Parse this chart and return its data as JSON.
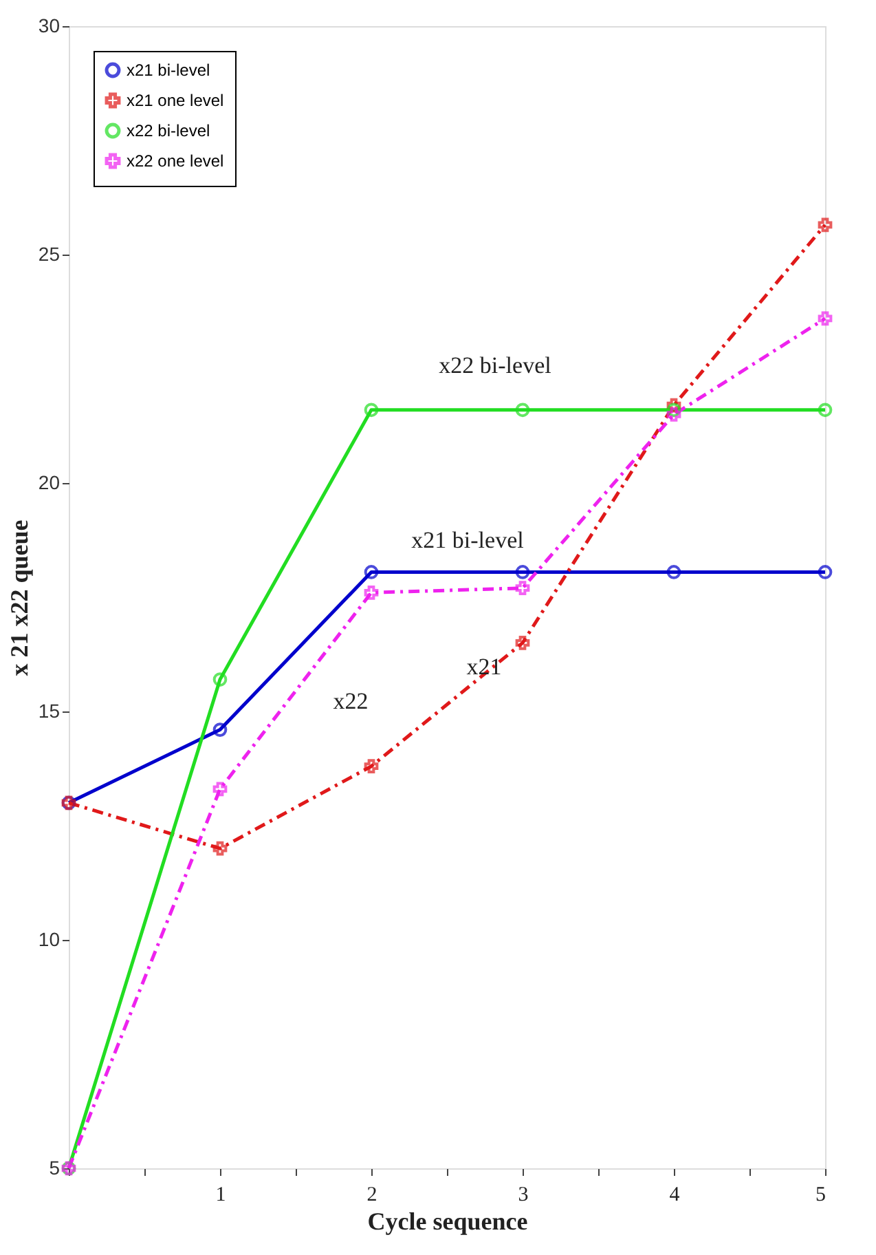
{
  "chart_data": {
    "type": "line",
    "xlabel": "Cycle sequence",
    "ylabel": "x 21  x22 queue",
    "x": [
      0,
      1,
      2,
      3,
      4,
      5
    ],
    "xlim": [
      0,
      5
    ],
    "ylim": [
      5,
      30
    ],
    "xticks": [
      {
        "value": 0,
        "label": null
      },
      {
        "value": 0.5,
        "label": null
      },
      1,
      {
        "value": 1.5,
        "label": null
      },
      2,
      {
        "value": 2.5,
        "label": null
      },
      3,
      {
        "value": 3.5,
        "label": null
      },
      4,
      {
        "value": 4.5,
        "label": null
      },
      5
    ],
    "yticks": [
      5,
      10,
      15,
      20,
      25,
      30
    ],
    "grid": false,
    "legend": "top left",
    "series": [
      {
        "name": "x21  bi-level",
        "color": "#0000cc",
        "marker": "circle",
        "line_style": "solid",
        "values": [
          13,
          14.6,
          18.05,
          18.05,
          18.05,
          18.05
        ]
      },
      {
        "name": "x21 one level",
        "color": "#e0191a",
        "marker": "cross",
        "line_style": "dashed",
        "values": [
          13,
          12,
          13.8,
          16.5,
          21.7,
          25.65
        ]
      },
      {
        "name": "x22 bi-level",
        "color": "#22dd22",
        "marker": "circle",
        "line_style": "solid",
        "values": [
          5,
          15.7,
          21.6,
          21.6,
          21.6,
          21.6
        ]
      },
      {
        "name": "x22 one level",
        "color": "#ee22ee",
        "marker": "cross",
        "line_style": "dashed",
        "values": [
          5,
          13.3,
          17.6,
          17.7,
          21.5,
          23.6
        ]
      }
    ],
    "annotations": [
      "x22 bi-level",
      "x21 bi-level",
      "x22",
      "x21"
    ]
  }
}
